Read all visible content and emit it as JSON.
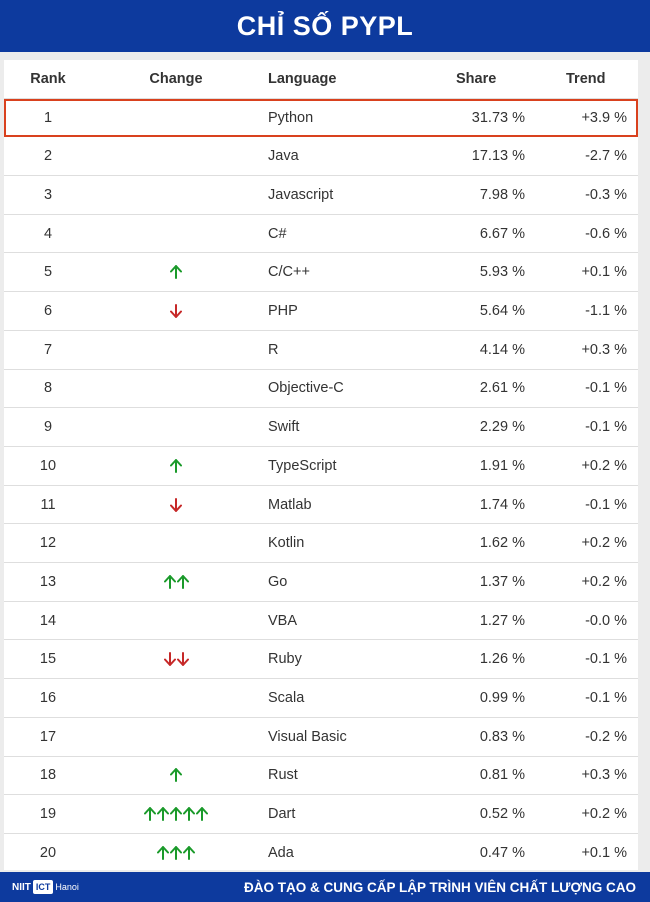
{
  "title": "CHỈ SỐ PYPL",
  "colors": {
    "brand": "#0d3a9e",
    "up": "#1a9a2a",
    "down": "#c62828",
    "highlight": "#d9411e"
  },
  "columns": {
    "rank": "Rank",
    "change": "Change",
    "language": "Language",
    "share": "Share",
    "trend": "Trend"
  },
  "rows": [
    {
      "rank": "1",
      "change": "",
      "language": "Python",
      "share": "31.73 %",
      "trend": "+3.9 %",
      "highlight": true
    },
    {
      "rank": "2",
      "change": "",
      "language": "Java",
      "share": "17.13 %",
      "trend": "-2.7 %"
    },
    {
      "rank": "3",
      "change": "",
      "language": "Javascript",
      "share": "7.98 %",
      "trend": "-0.3 %"
    },
    {
      "rank": "4",
      "change": "",
      "language": "C#",
      "share": "6.67 %",
      "trend": "-0.6 %"
    },
    {
      "rank": "5",
      "change": "U",
      "language": "C/C++",
      "share": "5.93 %",
      "trend": "+0.1 %"
    },
    {
      "rank": "6",
      "change": "D",
      "language": "PHP",
      "share": "5.64 %",
      "trend": "-1.1 %"
    },
    {
      "rank": "7",
      "change": "",
      "language": "R",
      "share": "4.14 %",
      "trend": "+0.3 %"
    },
    {
      "rank": "8",
      "change": "",
      "language": "Objective-C",
      "share": "2.61 %",
      "trend": "-0.1 %"
    },
    {
      "rank": "9",
      "change": "",
      "language": "Swift",
      "share": "2.29 %",
      "trend": "-0.1 %"
    },
    {
      "rank": "10",
      "change": "U",
      "language": "TypeScript",
      "share": "1.91 %",
      "trend": "+0.2 %"
    },
    {
      "rank": "11",
      "change": "D",
      "language": "Matlab",
      "share": "1.74 %",
      "trend": "-0.1 %"
    },
    {
      "rank": "12",
      "change": "",
      "language": "Kotlin",
      "share": "1.62 %",
      "trend": "+0.2 %"
    },
    {
      "rank": "13",
      "change": "UU",
      "language": "Go",
      "share": "1.37 %",
      "trend": "+0.2 %"
    },
    {
      "rank": "14",
      "change": "",
      "language": "VBA",
      "share": "1.27 %",
      "trend": "-0.0 %"
    },
    {
      "rank": "15",
      "change": "DD",
      "language": "Ruby",
      "share": "1.26 %",
      "trend": "-0.1 %"
    },
    {
      "rank": "16",
      "change": "",
      "language": "Scala",
      "share": "0.99 %",
      "trend": "-0.1 %"
    },
    {
      "rank": "17",
      "change": "",
      "language": "Visual Basic",
      "share": "0.83 %",
      "trend": "-0.2 %"
    },
    {
      "rank": "18",
      "change": "U",
      "language": "Rust",
      "share": "0.81 %",
      "trend": "+0.3 %"
    },
    {
      "rank": "19",
      "change": "UUUUU",
      "language": "Dart",
      "share": "0.52 %",
      "trend": "+0.2 %"
    },
    {
      "rank": "20",
      "change": "UUU",
      "language": "Ada",
      "share": "0.47 %",
      "trend": "+0.1 %"
    }
  ],
  "footer": {
    "logo_text": "NIIT",
    "logo_badge": "ICT",
    "logo_sub": "Hanoi",
    "tagline": "ĐÀO TẠO & CUNG CẤP LẬP TRÌNH VIÊN CHẤT LƯỢNG CAO"
  }
}
